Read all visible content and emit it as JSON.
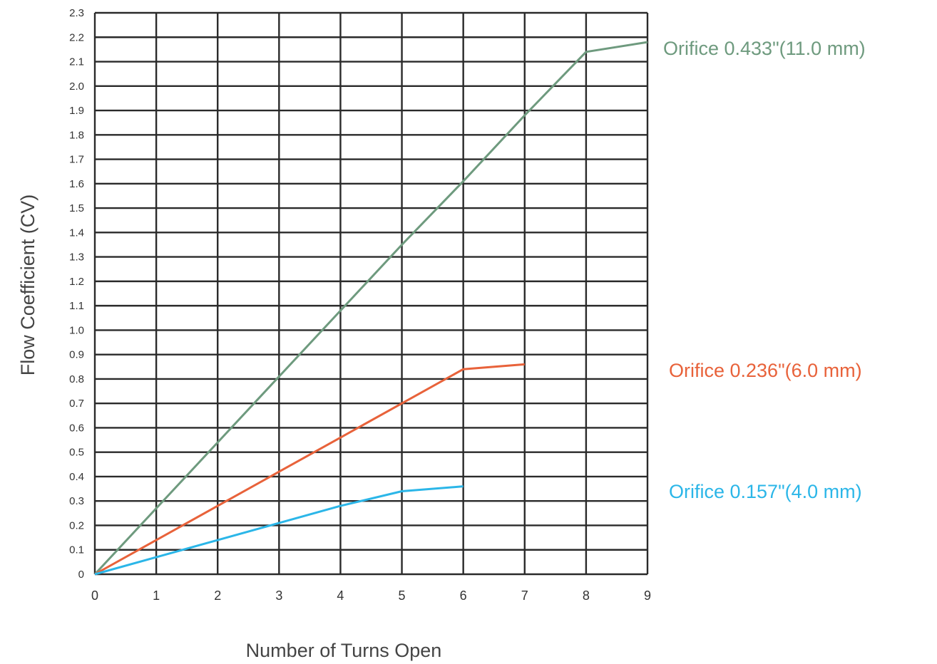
{
  "chart_data": {
    "type": "line",
    "title": "",
    "xlabel": "Number of Turns Open",
    "ylabel": "Flow Coefficient (CV)",
    "xlim": [
      0,
      9
    ],
    "ylim": [
      0,
      2.3
    ],
    "grid": true,
    "legend": "inline-right",
    "x_ticks": [
      "0",
      "1",
      "2",
      "3",
      "4",
      "5",
      "6",
      "7",
      "8",
      "9"
    ],
    "y_ticks": [
      "0",
      "0.1",
      "0.2",
      "0.3",
      "0.4",
      "0.5",
      "0.6",
      "0.7",
      "0.8",
      "0.9",
      "1.0",
      "1.1",
      "1.2",
      "1.3",
      "1.4",
      "1.5",
      "1.6",
      "1.7",
      "1.8",
      "1.9",
      "2.0",
      "2.1",
      "2.2",
      "2.3"
    ],
    "series": [
      {
        "name": "Orifice 0.433\"(11.0 mm)",
        "color": "#6e9a7e",
        "x": [
          0,
          1,
          2,
          3,
          4,
          5,
          6,
          7,
          8,
          9
        ],
        "y": [
          0,
          0.27,
          0.54,
          0.81,
          1.08,
          1.35,
          1.61,
          1.88,
          2.14,
          2.18
        ]
      },
      {
        "name": "Orifice 0.236\"(6.0 mm)",
        "color": "#e8623a",
        "x": [
          0,
          1,
          2,
          3,
          4,
          5,
          6,
          7
        ],
        "y": [
          0,
          0.14,
          0.28,
          0.42,
          0.56,
          0.7,
          0.84,
          0.86
        ]
      },
      {
        "name": "Orifice 0.157\"(4.0 mm)",
        "color": "#2bb6e8",
        "x": [
          0,
          1,
          2,
          3,
          4,
          5,
          6
        ],
        "y": [
          0,
          0.07,
          0.14,
          0.21,
          0.28,
          0.34,
          0.36
        ]
      }
    ]
  }
}
